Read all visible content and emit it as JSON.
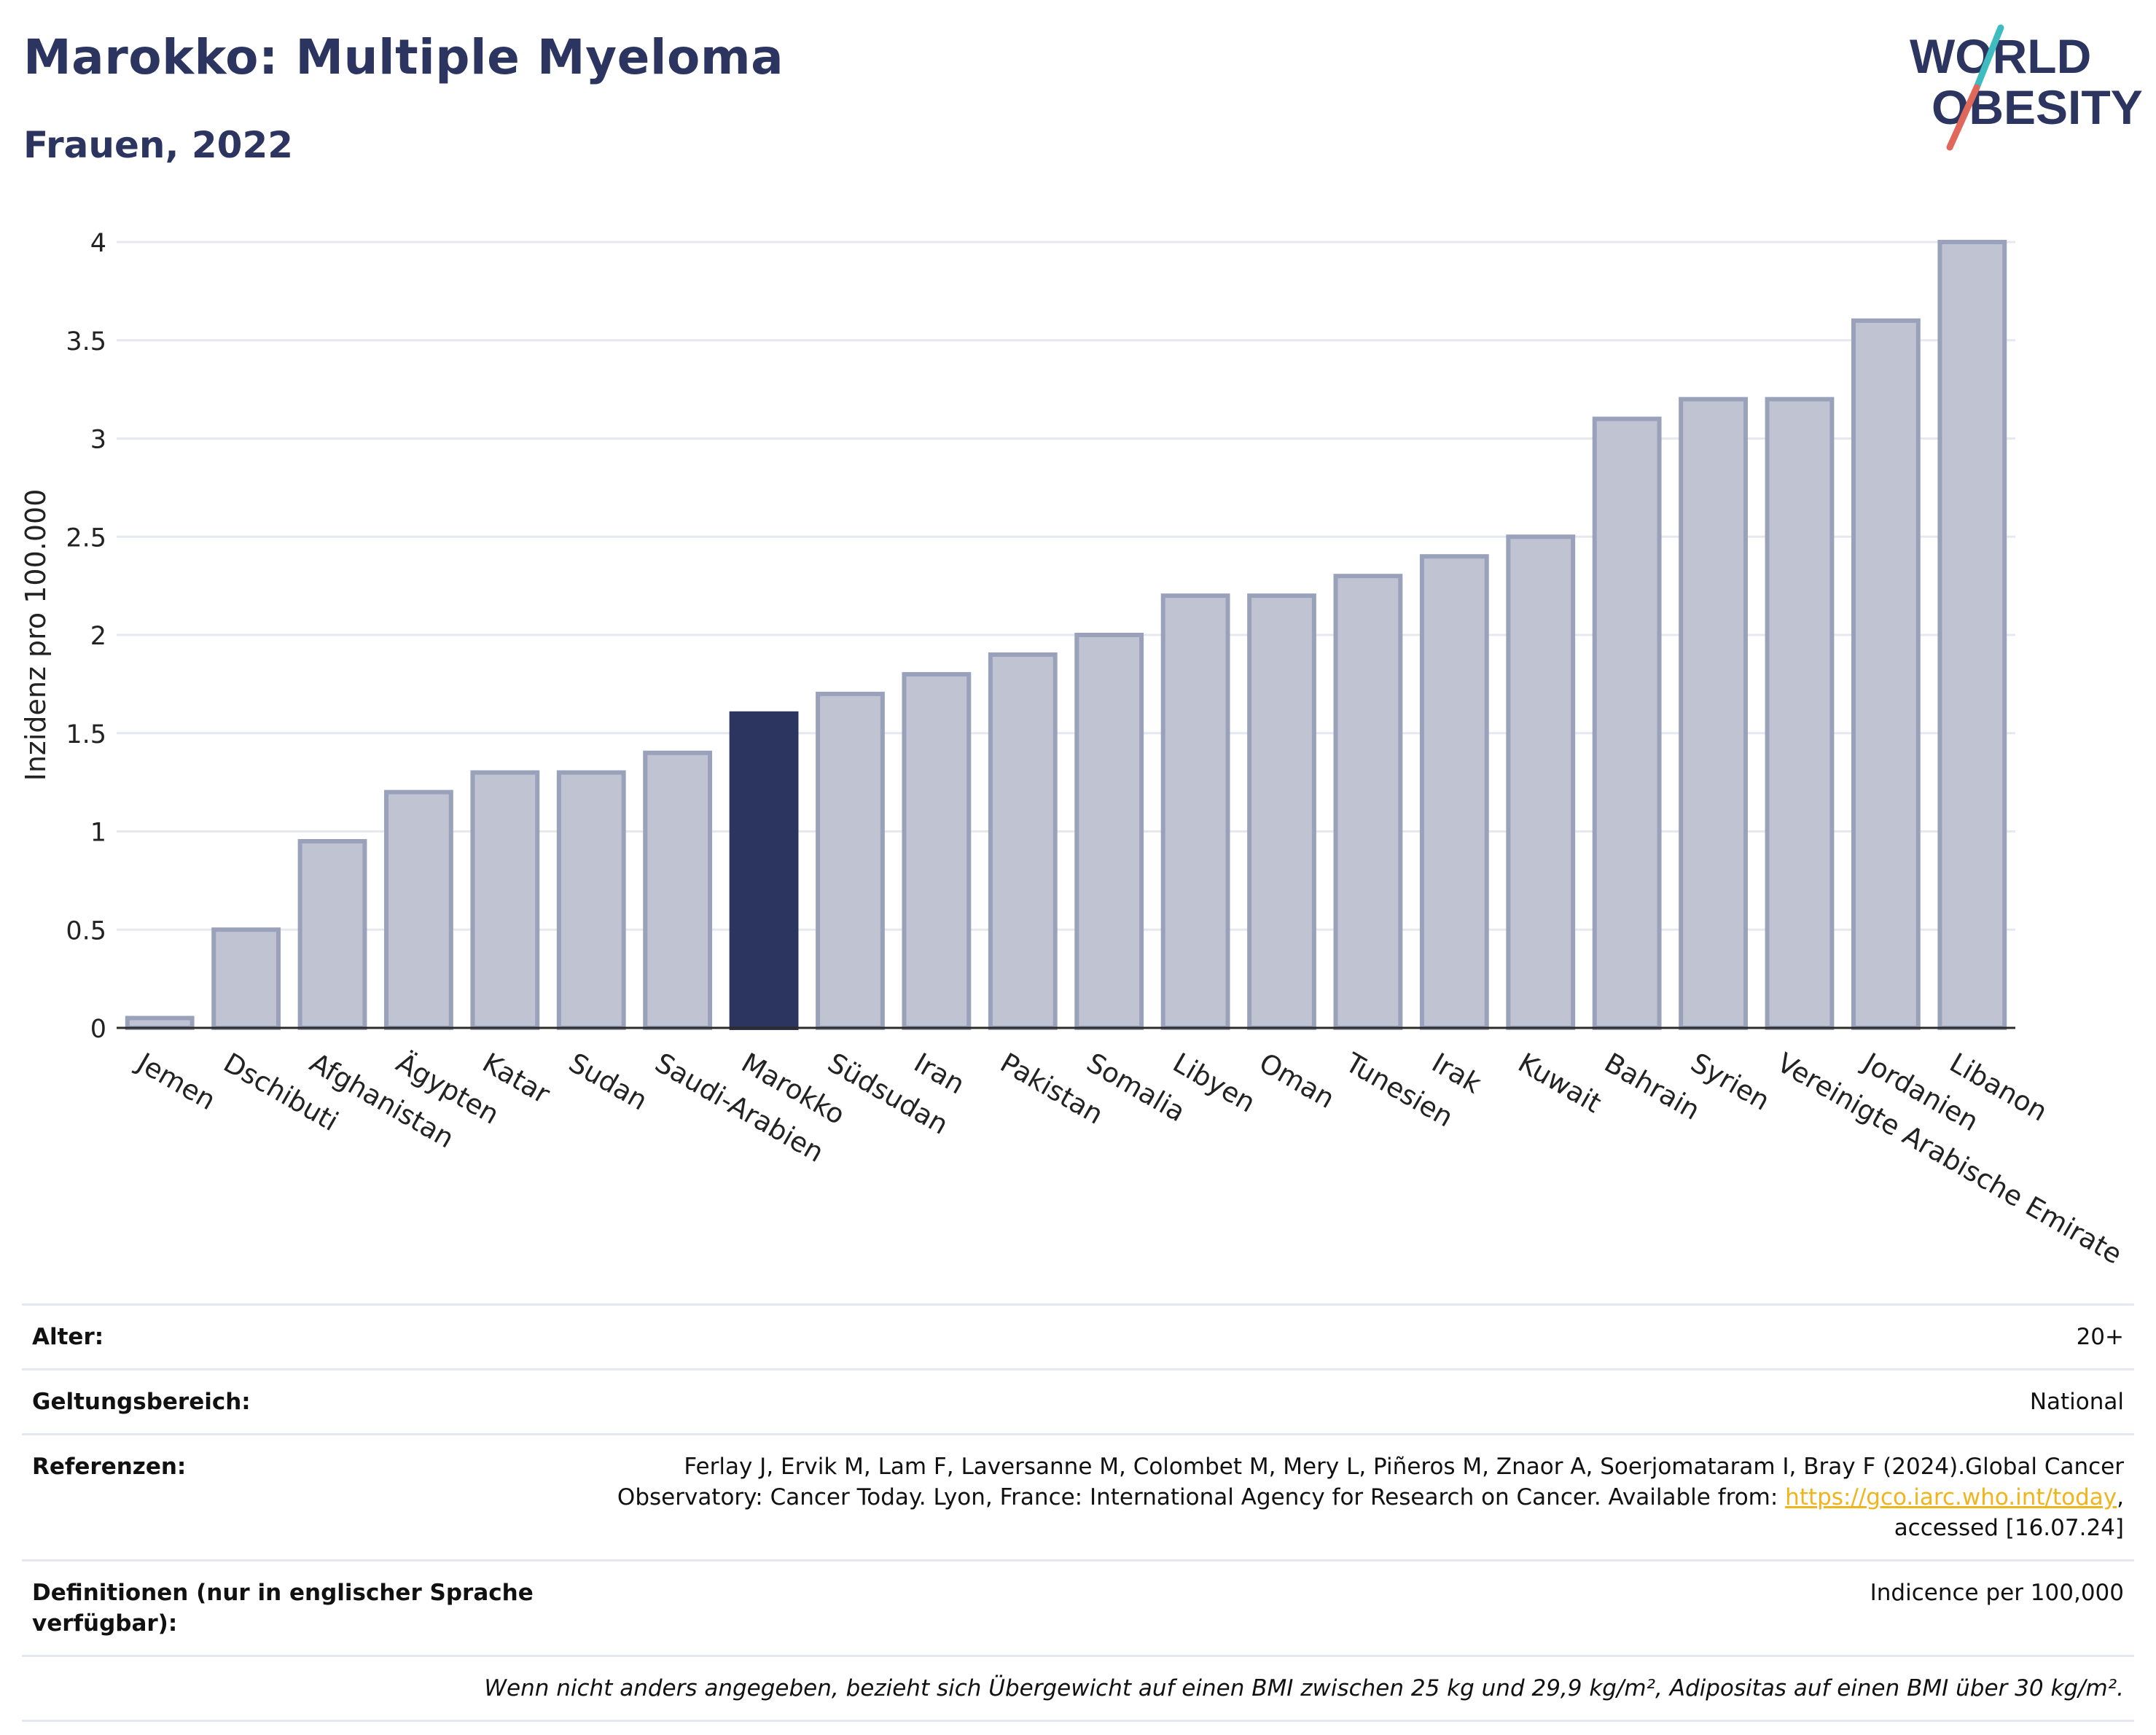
{
  "header": {
    "title": "Marokko: Multiple Myeloma",
    "subtitle": "Frauen, 2022",
    "logo_text_line1": "WORLD",
    "logo_text_line2": "OBESITY"
  },
  "colors": {
    "bar_default": "#bfc3d2",
    "bar_default_stroke": "#9aa1ba",
    "bar_highlight": "#2b3560",
    "title": "#2b3560",
    "link": "#f0b41c",
    "logo_slash_teal": "#3fbcc0",
    "logo_slash_red": "#e0685a"
  },
  "chart_data": {
    "type": "bar",
    "title": "Marokko: Multiple Myeloma",
    "subtitle": "Frauen, 2022",
    "xlabel": "",
    "ylabel": "Inzidenz pro 100.000",
    "ylim": [
      0,
      4
    ],
    "yticks": [
      0,
      0.5,
      1,
      1.5,
      2,
      2.5,
      3,
      3.5,
      4
    ],
    "ytick_labels": [
      "0",
      "0.5",
      "1",
      "1.5",
      "2",
      "2.5",
      "3",
      "3.5",
      "4"
    ],
    "grid": true,
    "highlight": "Marokko",
    "categories": [
      "Jemen",
      "Dschibuti",
      "Afghanistan",
      "Ägypten",
      "Katar",
      "Sudan",
      "Saudi-Arabien",
      "Marokko",
      "Südsudan",
      "Iran",
      "Pakistan",
      "Somalia",
      "Libyen",
      "Oman",
      "Tunesien",
      "Irak",
      "Kuwait",
      "Bahrain",
      "Syrien",
      "Vereinigte Arabische Emirate",
      "Jordanien",
      "Libanon"
    ],
    "values": [
      0.05,
      0.5,
      0.95,
      1.2,
      1.3,
      1.3,
      1.4,
      1.6,
      1.7,
      1.8,
      1.9,
      2.0,
      2.2,
      2.2,
      2.3,
      2.4,
      2.5,
      3.1,
      3.2,
      3.2,
      3.6,
      4.0
    ]
  },
  "info": {
    "age_label": "Alter:",
    "age_value": "20+",
    "scope_label": "Geltungsbereich:",
    "scope_value": "National",
    "refs_label": "Referenzen:",
    "refs_text_1": "Ferlay J, Ervik M, Lam F, Laversanne M, Colombet M, Mery L, Piñeros M, Znaor A, Soerjomataram I, Bray F (2024).Global Cancer Observatory: Cancer Today. Lyon, France: International Agency for Research on Cancer. Available from: ",
    "refs_link": "https://gco.iarc.who.int/today",
    "refs_text_2": ", accessed [16.07.24]",
    "def_label": "Definitionen (nur in englischer Sprache verfügbar):",
    "def_value": "Indicence per 100,000",
    "footnote": "Wenn nicht anders angegeben, bezieht sich Übergewicht auf einen BMI zwischen 25 kg und 29,9 kg/m², Adipositas auf einen BMI über 30 kg/m²."
  }
}
